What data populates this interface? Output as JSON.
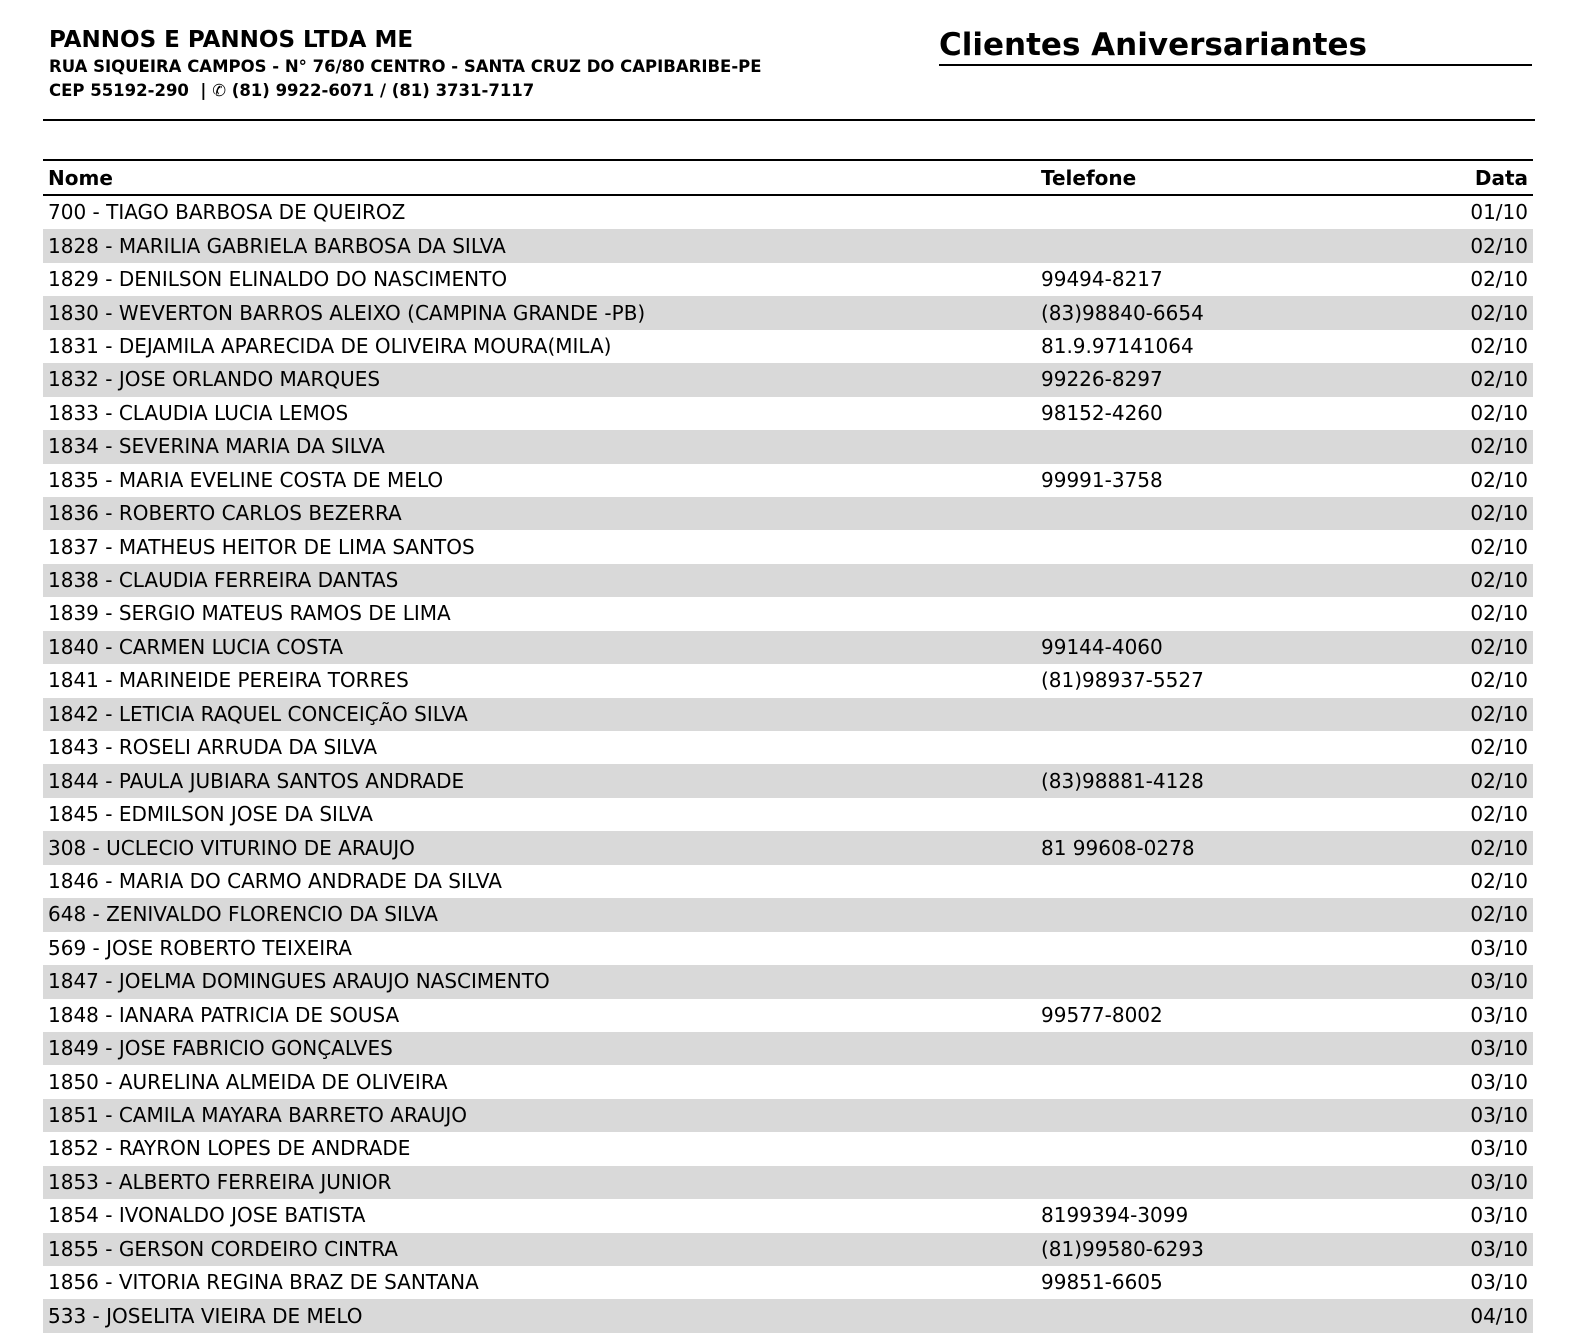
{
  "company": {
    "name": "PANNOS E PANNOS LTDA ME",
    "address": "RUA SIQUEIRA CAMPOS - N° 76/80 CENTRO - SANTA CRUZ DO CAPIBARIBE-PE",
    "cep": "CEP 55192-290",
    "separator": "|",
    "phone_icon": "phone-icon",
    "phone_glyph": "✆",
    "phones": "(81) 9922-6071 / (81) 3731-7117"
  },
  "report": {
    "title": "Clientes Aniversariantes"
  },
  "table": {
    "headers": {
      "nome": "Nome",
      "telefone": "Telefone",
      "data": "Data"
    },
    "rows": [
      {
        "nome": "700 - TIAGO BARBOSA DE QUEIROZ",
        "telefone": "",
        "data": "01/10"
      },
      {
        "nome": "1828 - MARILIA GABRIELA BARBOSA DA SILVA",
        "telefone": "",
        "data": "02/10"
      },
      {
        "nome": "1829 - DENILSON ELINALDO DO NASCIMENTO",
        "telefone": "99494-8217",
        "data": "02/10"
      },
      {
        "nome": "1830 - WEVERTON BARROS ALEIXO (CAMPINA GRANDE -PB)",
        "telefone": "(83)98840-6654",
        "data": "02/10"
      },
      {
        "nome": "1831 - DEJAMILA APARECIDA DE OLIVEIRA MOURA(MILA)",
        "telefone": "81.9.97141064",
        "data": "02/10"
      },
      {
        "nome": "1832 - JOSE ORLANDO MARQUES",
        "telefone": "99226-8297",
        "data": "02/10"
      },
      {
        "nome": "1833 - CLAUDIA LUCIA LEMOS",
        "telefone": "98152-4260",
        "data": "02/10"
      },
      {
        "nome": "1834 - SEVERINA MARIA DA SILVA",
        "telefone": "",
        "data": "02/10"
      },
      {
        "nome": "1835 - MARIA EVELINE COSTA DE MELO",
        "telefone": "99991-3758",
        "data": "02/10"
      },
      {
        "nome": "1836 - ROBERTO CARLOS BEZERRA",
        "telefone": "",
        "data": "02/10"
      },
      {
        "nome": "1837 - MATHEUS HEITOR DE LIMA SANTOS",
        "telefone": "",
        "data": "02/10"
      },
      {
        "nome": "1838 - CLAUDIA FERREIRA DANTAS",
        "telefone": "",
        "data": "02/10"
      },
      {
        "nome": "1839 - SERGIO MATEUS RAMOS DE LIMA",
        "telefone": "",
        "data": "02/10"
      },
      {
        "nome": "1840 - CARMEN LUCIA COSTA",
        "telefone": "99144-4060",
        "data": "02/10"
      },
      {
        "nome": "1841 - MARINEIDE PEREIRA TORRES",
        "telefone": "(81)98937-5527",
        "data": "02/10"
      },
      {
        "nome": "1842 - LETICIA RAQUEL CONCEIÇÃO SILVA",
        "telefone": "",
        "data": "02/10"
      },
      {
        "nome": "1843 - ROSELI ARRUDA DA SILVA",
        "telefone": "",
        "data": "02/10"
      },
      {
        "nome": "1844 - PAULA JUBIARA SANTOS ANDRADE",
        "telefone": "(83)98881-4128",
        "data": "02/10"
      },
      {
        "nome": "1845 - EDMILSON JOSE DA SILVA",
        "telefone": "",
        "data": "02/10"
      },
      {
        "nome": "308 - UCLECIO VITURINO DE ARAUJO",
        "telefone": "81 99608-0278",
        "data": "02/10"
      },
      {
        "nome": "1846 - MARIA DO CARMO ANDRADE DA SILVA",
        "telefone": "",
        "data": "02/10"
      },
      {
        "nome": "648 - ZENIVALDO FLORENCIO DA SILVA",
        "telefone": "",
        "data": "02/10"
      },
      {
        "nome": "569 - JOSE ROBERTO TEIXEIRA",
        "telefone": "",
        "data": "03/10"
      },
      {
        "nome": "1847 - JOELMA DOMINGUES ARAUJO NASCIMENTO",
        "telefone": "",
        "data": "03/10"
      },
      {
        "nome": "1848 - IANARA PATRICIA DE SOUSA",
        "telefone": "99577-8002",
        "data": "03/10"
      },
      {
        "nome": "1849 - JOSE FABRICIO GONÇALVES",
        "telefone": "",
        "data": "03/10"
      },
      {
        "nome": "1850 - AURELINA ALMEIDA DE OLIVEIRA",
        "telefone": "",
        "data": "03/10"
      },
      {
        "nome": "1851 - CAMILA MAYARA BARRETO ARAUJO",
        "telefone": "",
        "data": "03/10"
      },
      {
        "nome": "1852 - RAYRON LOPES DE ANDRADE",
        "telefone": "",
        "data": "03/10"
      },
      {
        "nome": "1853 - ALBERTO FERREIRA JUNIOR",
        "telefone": "",
        "data": "03/10"
      },
      {
        "nome": "1854 - IVONALDO JOSE BATISTA",
        "telefone": "8199394-3099",
        "data": "03/10"
      },
      {
        "nome": "1855 - GERSON CORDEIRO CINTRA",
        "telefone": "(81)99580-6293",
        "data": "03/10"
      },
      {
        "nome": "1856 - VITORIA REGINA BRAZ DE SANTANA",
        "telefone": "99851-6605",
        "data": "03/10"
      },
      {
        "nome": "533 - JOSELITA VIEIRA DE MELO",
        "telefone": "",
        "data": "04/10"
      }
    ]
  }
}
